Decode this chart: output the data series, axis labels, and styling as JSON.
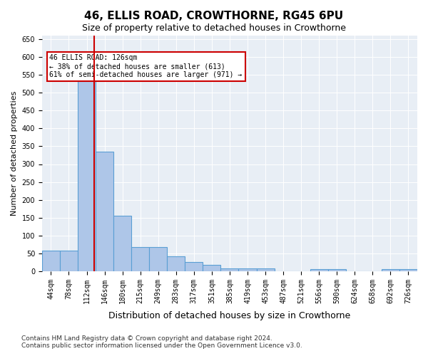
{
  "title": "46, ELLIS ROAD, CROWTHORNE, RG45 6PU",
  "subtitle": "Size of property relative to detached houses in Crowthorne",
  "xlabel": "Distribution of detached houses by size in Crowthorne",
  "ylabel": "Number of detached properties",
  "categories": [
    "44sqm",
    "78sqm",
    "112sqm",
    "146sqm",
    "180sqm",
    "215sqm",
    "249sqm",
    "283sqm",
    "317sqm",
    "351sqm",
    "385sqm",
    "419sqm",
    "453sqm",
    "487sqm",
    "521sqm",
    "556sqm",
    "590sqm",
    "624sqm",
    "658sqm",
    "692sqm",
    "726sqm"
  ],
  "values": [
    57,
    57,
    540,
    335,
    155,
    67,
    67,
    42,
    25,
    18,
    8,
    8,
    7,
    0,
    0,
    5,
    5,
    0,
    0,
    5,
    5
  ],
  "bar_color": "#aec6e8",
  "bar_edge_color": "#5a9fd4",
  "background_color": "#e8eef5",
  "property_line_x": 2.5,
  "property_sqm": "126sqm",
  "annotation_text_line1": "46 ELLIS ROAD: 126sqm",
  "annotation_text_line2": "← 38% of detached houses are smaller (613)",
  "annotation_text_line3": "61% of semi-detached houses are larger (971) →",
  "annotation_box_color": "#cc0000",
  "red_line_color": "#cc0000",
  "ylim": [
    0,
    660
  ],
  "yticks": [
    0,
    50,
    100,
    150,
    200,
    250,
    300,
    350,
    400,
    450,
    500,
    550,
    600,
    650
  ],
  "footer_line1": "Contains HM Land Registry data © Crown copyright and database right 2024.",
  "footer_line2": "Contains public sector information licensed under the Open Government Licence v3.0.",
  "title_fontsize": 11,
  "subtitle_fontsize": 9,
  "xlabel_fontsize": 9,
  "ylabel_fontsize": 8,
  "tick_fontsize": 7,
  "footer_fontsize": 6.5
}
